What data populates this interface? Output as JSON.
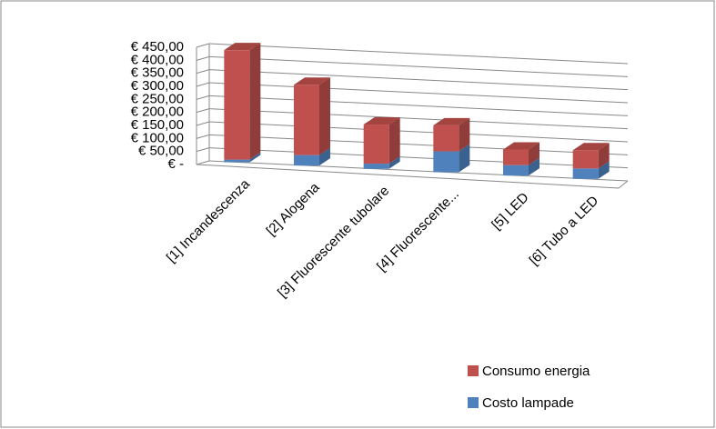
{
  "chart_data": {
    "type": "bar3d-stacked",
    "categories": [
      "[1] Incandescenza",
      "[2] Alogena",
      "[3] Fluorescente tubolare",
      "[4] Fluorescente...",
      "[5] LED",
      "[6] Tubo a LED"
    ],
    "series": [
      {
        "name": "Costo lampade",
        "color": "#4f81bd",
        "values": [
          10,
          40,
          20,
          80,
          40,
          40
        ]
      },
      {
        "name": "Consumo energia",
        "color": "#c0504d",
        "values": [
          420,
          270,
          150,
          100,
          60,
          70
        ]
      }
    ],
    "ylim": [
      0,
      450
    ],
    "yticks": [
      {
        "value": 0,
        "label": "€ -"
      },
      {
        "value": 50,
        "label": "€ 50,00"
      },
      {
        "value": 100,
        "label": "€ 100,00"
      },
      {
        "value": 150,
        "label": "€ 150,00"
      },
      {
        "value": 200,
        "label": "€ 200,00"
      },
      {
        "value": 250,
        "label": "€ 250,00"
      },
      {
        "value": 300,
        "label": "€ 300,00"
      },
      {
        "value": 350,
        "label": "€ 350,00"
      },
      {
        "value": 400,
        "label": "€ 400,00"
      },
      {
        "value": 450,
        "label": "€ 450,00"
      }
    ],
    "grid": true,
    "legend": "bottom-right"
  }
}
